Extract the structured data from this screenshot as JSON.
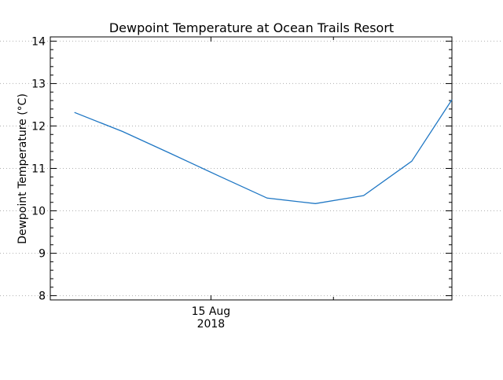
{
  "chart_data": {
    "type": "line",
    "title": "Dewpoint Temperature at Ocean Trails Resort",
    "xlabel": "",
    "ylabel": "Dewpoint Temperature (°C)",
    "x_tick_labels": [
      {
        "line1": "15 Aug",
        "line2": "2018",
        "x": 0.4
      }
    ],
    "xlim": [
      0,
      1
    ],
    "ylim": [
      7.9,
      14.1
    ],
    "y_ticks": [
      8,
      9,
      10,
      11,
      12,
      13,
      14
    ],
    "grid": "horizontal dotted",
    "series": [
      {
        "color": "#1f77c4",
        "x": [
          0.06,
          0.18,
          0.3,
          0.42,
          0.54,
          0.66,
          0.78,
          0.9,
          1.0
        ],
        "values": [
          12.32,
          11.87,
          11.35,
          10.82,
          10.3,
          10.17,
          10.36,
          11.17,
          12.62
        ]
      }
    ]
  }
}
